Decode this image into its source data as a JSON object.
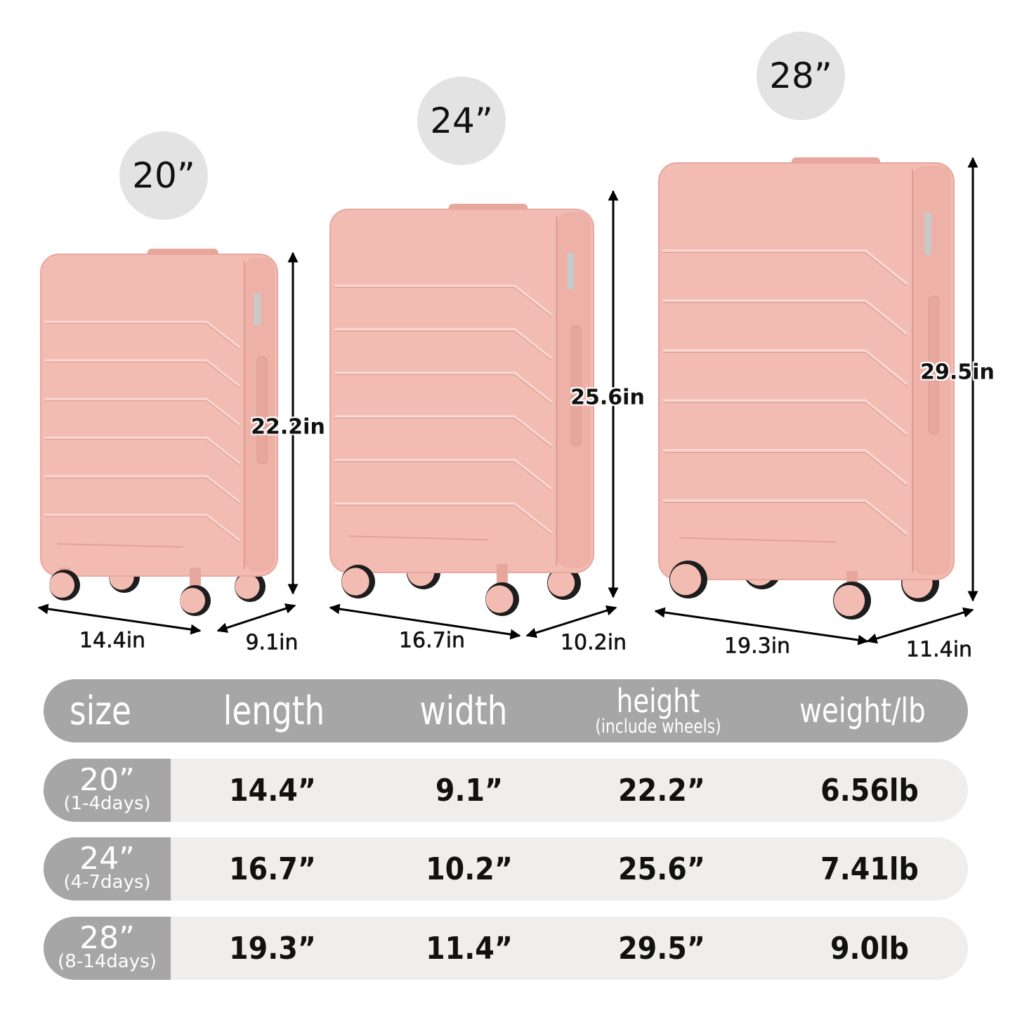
{
  "colors": {
    "luggage": "#f3bcb3",
    "luggage_shade": "#e7a79d",
    "badge": "#e3e3e3",
    "table_header": "#a6a6a6",
    "table_row": "#efeeed",
    "wheel": "#1d1d1d"
  },
  "suitcases": [
    {
      "size_label": "20”",
      "height": "22.2in",
      "length": "14.4in",
      "width": "9.1in"
    },
    {
      "size_label": "24”",
      "height": "25.6in",
      "length": "16.7in",
      "width": "10.2in"
    },
    {
      "size_label": "28”",
      "height": "29.5in",
      "length": "19.3in",
      "width": "11.4in"
    }
  ],
  "table": {
    "headers": {
      "size": "size",
      "length": "length",
      "width": "width",
      "height": "height",
      "height_note": "(include wheels)",
      "weight": "weight/lb"
    },
    "rows": [
      {
        "size": "20”",
        "days": "(1-4days)",
        "length": "14.4”",
        "width": "9.1”",
        "height": "22.2”",
        "weight": "6.56lb"
      },
      {
        "size": "24”",
        "days": "(4-7days)",
        "length": "16.7”",
        "width": "10.2”",
        "height": "25.6”",
        "weight": "7.41lb"
      },
      {
        "size": "28”",
        "days": "(8-14days)",
        "length": "19.3”",
        "width": "11.4”",
        "height": "29.5”",
        "weight": "9.0lb"
      }
    ]
  }
}
